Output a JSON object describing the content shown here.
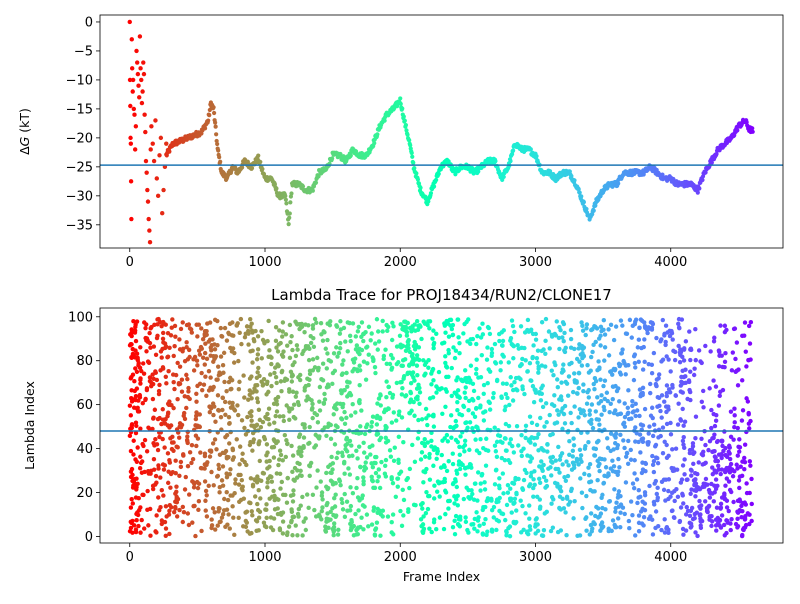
{
  "chart_data": [
    {
      "type": "scatter",
      "title": "",
      "xlabel": "",
      "ylabel": "ΔG (kT)",
      "ylabel_parts": [
        "Δ",
        "G",
        " (kT)"
      ],
      "xlim": [
        -220,
        4830
      ],
      "ylim": [
        -39,
        1.2
      ],
      "xticks": [
        0,
        1000,
        2000,
        3000,
        4000
      ],
      "yticks": [
        0,
        -5,
        -10,
        -15,
        -20,
        -25,
        -30,
        -35
      ],
      "hline": -24.7,
      "colormap": "rainbow",
      "scatter_head": [
        [
          0,
          0
        ],
        [
          2,
          -10
        ],
        [
          4,
          -14.5
        ],
        [
          6,
          -20
        ],
        [
          8,
          -21
        ],
        [
          10,
          -27.5
        ],
        [
          12,
          -34
        ],
        [
          15,
          -3
        ],
        [
          18,
          -8
        ],
        [
          22,
          -12
        ],
        [
          25,
          -10
        ],
        [
          30,
          -15
        ],
        [
          35,
          -16
        ],
        [
          40,
          -22
        ],
        [
          45,
          -18
        ],
        [
          50,
          -5
        ],
        [
          55,
          -7
        ],
        [
          60,
          -9
        ],
        [
          65,
          -11
        ],
        [
          70,
          -13
        ],
        [
          75,
          -2.5
        ],
        [
          80,
          -8
        ],
        [
          85,
          -10
        ],
        [
          90,
          -14
        ],
        [
          95,
          -12
        ],
        [
          100,
          -7
        ],
        [
          105,
          -9
        ],
        [
          110,
          -16
        ],
        [
          115,
          -19
        ],
        [
          120,
          -24
        ],
        [
          125,
          -26
        ],
        [
          130,
          -29
        ],
        [
          135,
          -31
        ],
        [
          140,
          -34
        ],
        [
          145,
          -36
        ],
        [
          150,
          -38
        ],
        [
          155,
          -22
        ],
        [
          160,
          -18
        ],
        [
          170,
          -21
        ],
        [
          180,
          -24
        ],
        [
          190,
          -17
        ],
        [
          200,
          -27
        ],
        [
          210,
          -30
        ],
        [
          220,
          -23
        ],
        [
          230,
          -20
        ],
        [
          240,
          -33
        ],
        [
          250,
          -29
        ],
        [
          260,
          -25
        ],
        [
          270,
          -21
        ]
      ],
      "path_points": [
        [
          270,
          -23
        ],
        [
          320,
          -21
        ],
        [
          380,
          -20.5
        ],
        [
          430,
          -20
        ],
        [
          480,
          -19.5
        ],
        [
          530,
          -19
        ],
        [
          580,
          -17
        ],
        [
          600,
          -14
        ],
        [
          620,
          -15
        ],
        [
          650,
          -22
        ],
        [
          680,
          -26
        ],
        [
          720,
          -27
        ],
        [
          760,
          -25
        ],
        [
          800,
          -26
        ],
        [
          850,
          -24
        ],
        [
          900,
          -25
        ],
        [
          950,
          -23.5
        ],
        [
          1000,
          -27
        ],
        [
          1050,
          -27
        ],
        [
          1100,
          -30
        ],
        [
          1150,
          -30
        ],
        [
          1175,
          -35
        ],
        [
          1200,
          -28
        ],
        [
          1250,
          -28
        ],
        [
          1300,
          -29
        ],
        [
          1350,
          -29
        ],
        [
          1400,
          -26
        ],
        [
          1450,
          -25.5
        ],
        [
          1500,
          -23
        ],
        [
          1550,
          -23
        ],
        [
          1600,
          -24
        ],
        [
          1650,
          -22
        ],
        [
          1700,
          -23
        ],
        [
          1750,
          -23
        ],
        [
          1800,
          -21
        ],
        [
          1850,
          -18
        ],
        [
          1900,
          -16
        ],
        [
          1950,
          -15
        ],
        [
          2000,
          -13.5
        ],
        [
          2030,
          -17
        ],
        [
          2070,
          -21
        ],
        [
          2100,
          -25
        ],
        [
          2150,
          -29
        ],
        [
          2200,
          -31
        ],
        [
          2250,
          -28
        ],
        [
          2300,
          -25
        ],
        [
          2350,
          -24
        ],
        [
          2400,
          -26
        ],
        [
          2450,
          -25
        ],
        [
          2500,
          -25
        ],
        [
          2550,
          -26
        ],
        [
          2600,
          -25
        ],
        [
          2650,
          -24
        ],
        [
          2700,
          -24
        ],
        [
          2750,
          -27
        ],
        [
          2800,
          -25
        ],
        [
          2850,
          -21
        ],
        [
          2900,
          -22
        ],
        [
          2950,
          -22
        ],
        [
          3000,
          -23
        ],
        [
          3050,
          -26
        ],
        [
          3100,
          -26
        ],
        [
          3150,
          -27
        ],
        [
          3200,
          -26
        ],
        [
          3250,
          -26
        ],
        [
          3300,
          -28
        ],
        [
          3350,
          -31
        ],
        [
          3400,
          -34
        ],
        [
          3450,
          -31
        ],
        [
          3500,
          -29
        ],
        [
          3550,
          -28
        ],
        [
          3600,
          -28
        ],
        [
          3650,
          -26
        ],
        [
          3700,
          -26
        ],
        [
          3750,
          -26
        ],
        [
          3800,
          -26
        ],
        [
          3850,
          -25
        ],
        [
          3900,
          -26
        ],
        [
          3950,
          -27
        ],
        [
          4000,
          -27
        ],
        [
          4050,
          -28
        ],
        [
          4100,
          -28
        ],
        [
          4150,
          -28
        ],
        [
          4200,
          -29
        ],
        [
          4250,
          -26
        ],
        [
          4300,
          -24
        ],
        [
          4350,
          -22
        ],
        [
          4400,
          -21
        ],
        [
          4450,
          -20
        ],
        [
          4500,
          -18
        ],
        [
          4550,
          -17
        ],
        [
          4580,
          -18.5
        ],
        [
          4610,
          -18.8
        ]
      ]
    },
    {
      "type": "scatter",
      "title": "Lambda Trace for PROJ18434/RUN2/CLONE17",
      "xlabel": "Frame Index",
      "ylabel": "Lambda Index",
      "xlim": [
        -220,
        4830
      ],
      "ylim": [
        -3,
        104
      ],
      "xticks": [
        0,
        1000,
        2000,
        3000,
        4000
      ],
      "yticks": [
        0,
        20,
        40,
        60,
        80,
        100
      ],
      "hline": 48,
      "colormap": "rainbow",
      "x_range": [
        0,
        4600
      ],
      "y_range": [
        0,
        99
      ]
    }
  ]
}
